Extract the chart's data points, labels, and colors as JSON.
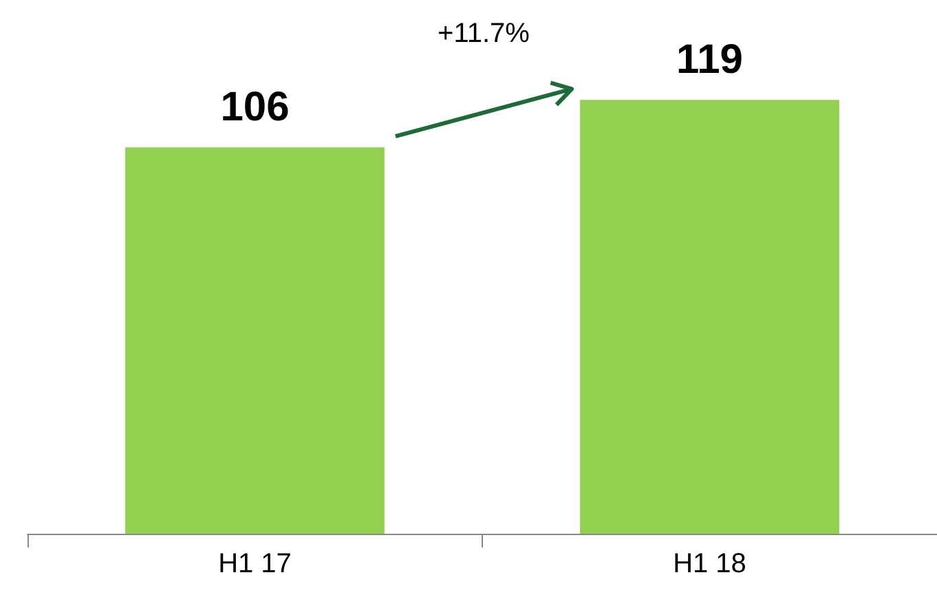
{
  "chart_data": {
    "type": "bar",
    "categories": [
      "H1 17",
      "H1 18"
    ],
    "values": [
      106,
      119
    ],
    "color": "#92d050",
    "data_labels": true,
    "annotations": [
      "+11.7%"
    ]
  }
}
